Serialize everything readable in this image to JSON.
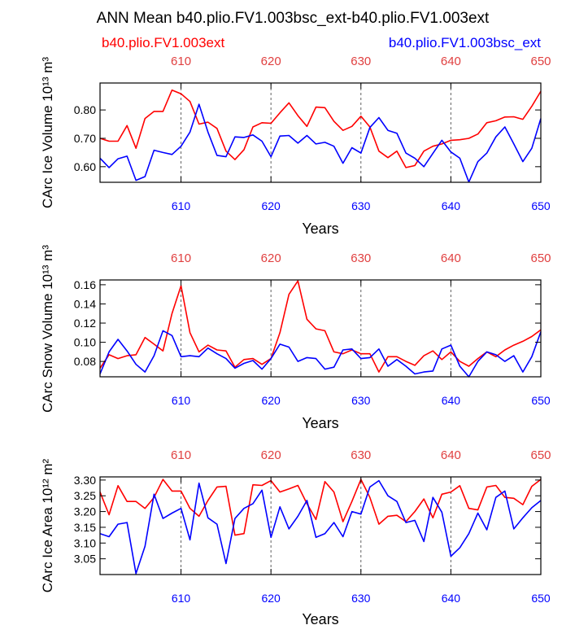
{
  "title": "ANN Mean b40.plio.FV1.003bsc_ext-b40.plio.FV1.003ext",
  "legend": {
    "left_label": "b40.plio.FV1.003ext",
    "right_label": "b40.plio.FV1.003bsc_ext"
  },
  "colors": {
    "red": "#ff0000",
    "blue": "#0000ff",
    "top_ticks": "#e04040",
    "grid": "#606060",
    "frame": "#000000"
  },
  "chart_data": [
    {
      "type": "line",
      "ylabel": "CArc Ice Volume 10¹³ m³",
      "xlabel": "Years",
      "xlim": [
        601,
        650
      ],
      "ylim": [
        0.545,
        0.895
      ],
      "yticks": [
        0.6,
        0.7,
        0.8
      ],
      "ytick_labels": [
        "0.60",
        "0.70",
        "0.80"
      ],
      "xticks": [
        610,
        620,
        630,
        640,
        650
      ],
      "xtick_labels": [
        "610",
        "620",
        "630",
        "640",
        "650"
      ],
      "x": [
        601,
        602,
        603,
        604,
        605,
        606,
        607,
        608,
        609,
        610,
        611,
        612,
        613,
        614,
        615,
        616,
        617,
        618,
        619,
        620,
        621,
        622,
        623,
        624,
        625,
        626,
        627,
        628,
        629,
        630,
        631,
        632,
        633,
        634,
        635,
        636,
        637,
        638,
        639,
        640,
        641,
        642,
        643,
        644,
        645,
        646,
        647,
        648,
        649,
        650
      ],
      "series": [
        {
          "name": "b40.plio.FV1.003ext",
          "color": "#ff0000",
          "values": [
            0.7,
            0.69,
            0.69,
            0.745,
            0.665,
            0.77,
            0.795,
            0.795,
            0.87,
            0.857,
            0.83,
            0.75,
            0.757,
            0.735,
            0.655,
            0.625,
            0.66,
            0.74,
            0.755,
            0.753,
            0.79,
            0.825,
            0.78,
            0.742,
            0.81,
            0.808,
            0.76,
            0.728,
            0.742,
            0.778,
            0.74,
            0.655,
            0.632,
            0.655,
            0.597,
            0.604,
            0.655,
            0.672,
            0.68,
            0.693,
            0.695,
            0.7,
            0.715,
            0.755,
            0.762,
            0.775,
            0.776,
            0.767,
            0.813,
            0.866
          ]
        },
        {
          "name": "b40.plio.FV1.003bsc_ext",
          "color": "#0000ff",
          "values": [
            0.63,
            0.597,
            0.628,
            0.637,
            0.552,
            0.565,
            0.658,
            0.65,
            0.643,
            0.672,
            0.722,
            0.82,
            0.722,
            0.64,
            0.635,
            0.705,
            0.703,
            0.712,
            0.69,
            0.635,
            0.708,
            0.71,
            0.683,
            0.71,
            0.68,
            0.686,
            0.672,
            0.612,
            0.667,
            0.648,
            0.738,
            0.773,
            0.728,
            0.718,
            0.648,
            0.63,
            0.6,
            0.647,
            0.693,
            0.652,
            0.63,
            0.546,
            0.618,
            0.648,
            0.705,
            0.74,
            0.68,
            0.618,
            0.665,
            0.77
          ]
        }
      ]
    },
    {
      "type": "line",
      "ylabel": "CArc Snow Volume 10¹³ m³",
      "xlabel": "Years",
      "xlim": [
        601,
        650
      ],
      "ylim": [
        0.064,
        0.165
      ],
      "yticks": [
        0.08,
        0.1,
        0.12,
        0.14,
        0.16
      ],
      "ytick_labels": [
        "0.08",
        "0.10",
        "0.12",
        "0.14",
        "0.16"
      ],
      "xticks": [
        610,
        620,
        630,
        640,
        650
      ],
      "xtick_labels": [
        "610",
        "620",
        "630",
        "640",
        "650"
      ],
      "x": [
        601,
        602,
        603,
        604,
        605,
        606,
        607,
        608,
        609,
        610,
        611,
        612,
        613,
        614,
        615,
        616,
        617,
        618,
        619,
        620,
        621,
        622,
        623,
        624,
        625,
        626,
        627,
        628,
        629,
        630,
        631,
        632,
        633,
        634,
        635,
        636,
        637,
        638,
        639,
        640,
        641,
        642,
        643,
        644,
        645,
        646,
        647,
        648,
        649,
        650
      ],
      "series": [
        {
          "name": "b40.plio.FV1.003ext",
          "color": "#ff0000",
          "values": [
            0.073,
            0.087,
            0.083,
            0.086,
            0.087,
            0.105,
            0.098,
            0.091,
            0.13,
            0.159,
            0.11,
            0.09,
            0.097,
            0.092,
            0.091,
            0.074,
            0.082,
            0.083,
            0.077,
            0.083,
            0.11,
            0.15,
            0.164,
            0.124,
            0.114,
            0.112,
            0.09,
            0.088,
            0.092,
            0.088,
            0.088,
            0.069,
            0.085,
            0.085,
            0.08,
            0.076,
            0.086,
            0.091,
            0.082,
            0.09,
            0.08,
            0.075,
            0.083,
            0.09,
            0.085,
            0.092,
            0.097,
            0.101,
            0.106,
            0.113
          ]
        },
        {
          "name": "b40.plio.FV1.003bsc_ext",
          "color": "#0000ff",
          "values": [
            0.067,
            0.09,
            0.103,
            0.091,
            0.077,
            0.069,
            0.086,
            0.112,
            0.107,
            0.085,
            0.086,
            0.085,
            0.094,
            0.088,
            0.083,
            0.073,
            0.078,
            0.081,
            0.072,
            0.083,
            0.098,
            0.095,
            0.08,
            0.084,
            0.083,
            0.072,
            0.074,
            0.092,
            0.093,
            0.083,
            0.084,
            0.093,
            0.075,
            0.082,
            0.075,
            0.067,
            0.069,
            0.07,
            0.093,
            0.097,
            0.075,
            0.064,
            0.08,
            0.09,
            0.087,
            0.08,
            0.086,
            0.069,
            0.085,
            0.111
          ]
        }
      ]
    },
    {
      "type": "line",
      "ylabel": "CArc Ice Area 10¹² m²",
      "xlabel": "Years",
      "xlim": [
        601,
        650
      ],
      "ylim": [
        3.0,
        3.31
      ],
      "yticks": [
        3.05,
        3.1,
        3.15,
        3.2,
        3.25,
        3.3
      ],
      "ytick_labels": [
        "3.05",
        "3.10",
        "3.15",
        "3.20",
        "3.25",
        "3.30"
      ],
      "xticks": [
        610,
        620,
        630,
        640,
        650
      ],
      "xtick_labels": [
        "610",
        "620",
        "630",
        "640",
        "650"
      ],
      "x": [
        601,
        602,
        603,
        604,
        605,
        606,
        607,
        608,
        609,
        610,
        611,
        612,
        613,
        614,
        615,
        616,
        617,
        618,
        619,
        620,
        621,
        622,
        623,
        624,
        625,
        626,
        627,
        628,
        629,
        630,
        631,
        632,
        633,
        634,
        635,
        636,
        637,
        638,
        639,
        640,
        641,
        642,
        643,
        644,
        645,
        646,
        647,
        648,
        649,
        650
      ],
      "series": [
        {
          "name": "b40.plio.FV1.003ext",
          "color": "#ff0000",
          "values": [
            3.262,
            3.19,
            3.282,
            3.232,
            3.232,
            3.21,
            3.245,
            3.302,
            3.265,
            3.265,
            3.21,
            3.185,
            3.235,
            3.278,
            3.28,
            3.125,
            3.13,
            3.285,
            3.283,
            3.298,
            3.262,
            3.272,
            3.283,
            3.225,
            3.175,
            3.295,
            3.262,
            3.168,
            3.232,
            3.302,
            3.245,
            3.16,
            3.185,
            3.188,
            3.168,
            3.2,
            3.24,
            3.18,
            3.255,
            3.262,
            3.282,
            3.21,
            3.205,
            3.278,
            3.283,
            3.245,
            3.242,
            3.222,
            3.28,
            3.302
          ]
        },
        {
          "name": "b40.plio.FV1.003bsc_ext",
          "color": "#0000ff",
          "values": [
            3.13,
            3.12,
            3.16,
            3.165,
            3.003,
            3.09,
            3.255,
            3.178,
            3.195,
            3.21,
            3.11,
            3.29,
            3.18,
            3.16,
            3.035,
            3.178,
            3.21,
            3.225,
            3.268,
            3.118,
            3.215,
            3.145,
            3.185,
            3.235,
            3.118,
            3.13,
            3.165,
            3.12,
            3.2,
            3.192,
            3.278,
            3.298,
            3.25,
            3.232,
            3.165,
            3.172,
            3.105,
            3.245,
            3.198,
            3.058,
            3.085,
            3.13,
            3.195,
            3.142,
            3.245,
            3.265,
            3.145,
            3.18,
            3.212,
            3.235
          ]
        }
      ]
    }
  ]
}
